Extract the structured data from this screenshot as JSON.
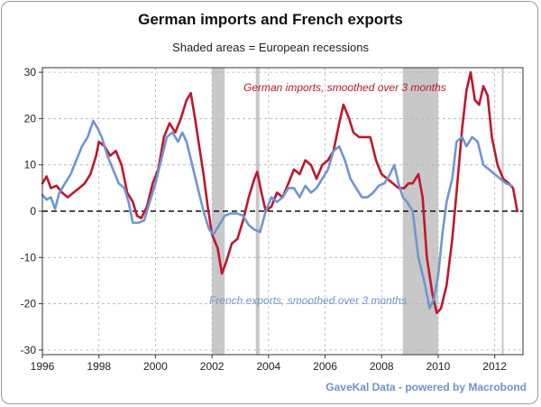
{
  "chart_data": {
    "type": "line",
    "title": "German imports and French exports",
    "subtitle": "Shaded areas = European recessions",
    "source": "GaveKal Data - powered by Macrobond",
    "xlim": [
      1996,
      2013
    ],
    "ylim": [
      -31,
      31
    ],
    "x_ticks": [
      1996,
      1998,
      2000,
      2002,
      2004,
      2006,
      2008,
      2010,
      2012
    ],
    "y_ticks": [
      30,
      20,
      10,
      0,
      -10,
      -20,
      -30
    ],
    "zero_line": true,
    "grid": true,
    "recessions": [
      [
        2002.0,
        2002.45
      ],
      [
        2003.55,
        2003.68
      ],
      [
        2008.75,
        2010.0
      ],
      [
        2012.25,
        2012.3
      ]
    ],
    "colors": {
      "german": "#c0162e",
      "french": "#7096cf",
      "recession": "#c8c8c8",
      "grid": "#b5b5b5"
    },
    "series": [
      {
        "name": "German imports, smoothed over 3 months",
        "label": "German imports, smoothed over 3 months",
        "color": "#c0162e",
        "points": [
          [
            1996.0,
            6
          ],
          [
            1996.15,
            7.5
          ],
          [
            1996.3,
            5
          ],
          [
            1996.5,
            5.5
          ],
          [
            1996.7,
            4
          ],
          [
            1996.9,
            3
          ],
          [
            1997.1,
            4
          ],
          [
            1997.3,
            5
          ],
          [
            1997.5,
            6
          ],
          [
            1997.7,
            8
          ],
          [
            1997.9,
            12
          ],
          [
            1998.0,
            15
          ],
          [
            1998.2,
            14
          ],
          [
            1998.4,
            12
          ],
          [
            1998.6,
            13
          ],
          [
            1998.8,
            10
          ],
          [
            1999.0,
            4
          ],
          [
            1999.2,
            2
          ],
          [
            1999.35,
            -1
          ],
          [
            1999.5,
            -1.5
          ],
          [
            1999.7,
            1
          ],
          [
            1999.9,
            6
          ],
          [
            2000.1,
            9
          ],
          [
            2000.3,
            16
          ],
          [
            2000.5,
            19
          ],
          [
            2000.7,
            17
          ],
          [
            2000.9,
            20
          ],
          [
            2001.1,
            24
          ],
          [
            2001.25,
            25.5
          ],
          [
            2001.4,
            20
          ],
          [
            2001.55,
            14
          ],
          [
            2001.7,
            8
          ],
          [
            2001.85,
            1
          ],
          [
            2002.0,
            -5
          ],
          [
            2002.2,
            -8
          ],
          [
            2002.35,
            -13.5
          ],
          [
            2002.5,
            -11
          ],
          [
            2002.7,
            -7
          ],
          [
            2002.9,
            -6
          ],
          [
            2003.1,
            -2
          ],
          [
            2003.3,
            3
          ],
          [
            2003.5,
            7
          ],
          [
            2003.6,
            8.5
          ],
          [
            2003.75,
            4
          ],
          [
            2003.9,
            0
          ],
          [
            2004.1,
            1
          ],
          [
            2004.3,
            4
          ],
          [
            2004.5,
            3
          ],
          [
            2004.7,
            6
          ],
          [
            2004.9,
            9
          ],
          [
            2005.1,
            8
          ],
          [
            2005.3,
            11
          ],
          [
            2005.5,
            10
          ],
          [
            2005.7,
            7
          ],
          [
            2005.9,
            10
          ],
          [
            2006.1,
            11
          ],
          [
            2006.3,
            13
          ],
          [
            2006.5,
            19
          ],
          [
            2006.65,
            23
          ],
          [
            2006.85,
            20
          ],
          [
            2007.0,
            17
          ],
          [
            2007.2,
            16
          ],
          [
            2007.4,
            16
          ],
          [
            2007.6,
            16
          ],
          [
            2007.8,
            11
          ],
          [
            2008.0,
            8
          ],
          [
            2008.2,
            7
          ],
          [
            2008.4,
            6
          ],
          [
            2008.6,
            5
          ],
          [
            2008.8,
            5
          ],
          [
            2008.95,
            6
          ],
          [
            2009.1,
            6
          ],
          [
            2009.3,
            8
          ],
          [
            2009.45,
            3
          ],
          [
            2009.6,
            -10
          ],
          [
            2009.8,
            -18
          ],
          [
            2009.95,
            -22
          ],
          [
            2010.1,
            -21
          ],
          [
            2010.3,
            -16
          ],
          [
            2010.5,
            -6
          ],
          [
            2010.65,
            4
          ],
          [
            2010.85,
            18
          ],
          [
            2011.0,
            26
          ],
          [
            2011.15,
            30
          ],
          [
            2011.3,
            24
          ],
          [
            2011.45,
            23
          ],
          [
            2011.6,
            27
          ],
          [
            2011.75,
            25
          ],
          [
            2011.9,
            16
          ],
          [
            2012.1,
            10
          ],
          [
            2012.3,
            7
          ],
          [
            2012.5,
            6
          ],
          [
            2012.65,
            5
          ],
          [
            2012.8,
            0
          ]
        ]
      },
      {
        "name": "French exports, smoothed over 3 months",
        "label": "French exports, smoothed over 3 months",
        "color": "#7096cf",
        "points": [
          [
            1996.0,
            3.5
          ],
          [
            1996.15,
            2.5
          ],
          [
            1996.3,
            3
          ],
          [
            1996.45,
            0.5
          ],
          [
            1996.6,
            4
          ],
          [
            1996.8,
            6
          ],
          [
            1997.0,
            8
          ],
          [
            1997.2,
            11
          ],
          [
            1997.4,
            14
          ],
          [
            1997.6,
            16
          ],
          [
            1997.8,
            19.5
          ],
          [
            1997.95,
            18
          ],
          [
            1998.1,
            16
          ],
          [
            1998.3,
            12
          ],
          [
            1998.5,
            9
          ],
          [
            1998.7,
            6
          ],
          [
            1998.9,
            5
          ],
          [
            1999.05,
            2
          ],
          [
            1999.2,
            -2.5
          ],
          [
            1999.4,
            -2.5
          ],
          [
            1999.6,
            -2
          ],
          [
            1999.8,
            2
          ],
          [
            2000.0,
            6
          ],
          [
            2000.2,
            11
          ],
          [
            2000.4,
            16
          ],
          [
            2000.6,
            17
          ],
          [
            2000.8,
            15
          ],
          [
            2000.95,
            17
          ],
          [
            2001.1,
            15
          ],
          [
            2001.3,
            10
          ],
          [
            2001.5,
            5
          ],
          [
            2001.7,
            0
          ],
          [
            2001.9,
            -4
          ],
          [
            2002.05,
            -5
          ],
          [
            2002.25,
            -3
          ],
          [
            2002.45,
            -1
          ],
          [
            2002.65,
            -0.5
          ],
          [
            2002.9,
            -0.5
          ],
          [
            2003.1,
            -1
          ],
          [
            2003.3,
            -3
          ],
          [
            2003.5,
            -4
          ],
          [
            2003.7,
            -4.5
          ],
          [
            2003.9,
            0
          ],
          [
            2004.1,
            3
          ],
          [
            2004.3,
            2
          ],
          [
            2004.5,
            3
          ],
          [
            2004.7,
            5
          ],
          [
            2004.9,
            5
          ],
          [
            2005.1,
            3
          ],
          [
            2005.3,
            5.5
          ],
          [
            2005.5,
            4
          ],
          [
            2005.7,
            5
          ],
          [
            2005.9,
            7
          ],
          [
            2006.1,
            9
          ],
          [
            2006.3,
            13
          ],
          [
            2006.5,
            14
          ],
          [
            2006.7,
            11
          ],
          [
            2006.9,
            7
          ],
          [
            2007.1,
            5
          ],
          [
            2007.3,
            3
          ],
          [
            2007.5,
            3
          ],
          [
            2007.7,
            4
          ],
          [
            2007.9,
            5.5
          ],
          [
            2008.1,
            6
          ],
          [
            2008.3,
            8
          ],
          [
            2008.45,
            10
          ],
          [
            2008.6,
            6
          ],
          [
            2008.75,
            3
          ],
          [
            2008.9,
            2
          ],
          [
            2009.1,
            0
          ],
          [
            2009.3,
            -10
          ],
          [
            2009.5,
            -15
          ],
          [
            2009.7,
            -21
          ],
          [
            2009.85,
            -19
          ],
          [
            2010.0,
            -14
          ],
          [
            2010.15,
            -5
          ],
          [
            2010.3,
            2
          ],
          [
            2010.5,
            7
          ],
          [
            2010.65,
            15
          ],
          [
            2010.85,
            16
          ],
          [
            2011.0,
            14
          ],
          [
            2011.2,
            16
          ],
          [
            2011.4,
            15
          ],
          [
            2011.6,
            10
          ],
          [
            2011.8,
            9
          ],
          [
            2012.0,
            8
          ],
          [
            2012.2,
            7
          ],
          [
            2012.4,
            6
          ],
          [
            2012.6,
            5.5
          ]
        ]
      }
    ]
  }
}
